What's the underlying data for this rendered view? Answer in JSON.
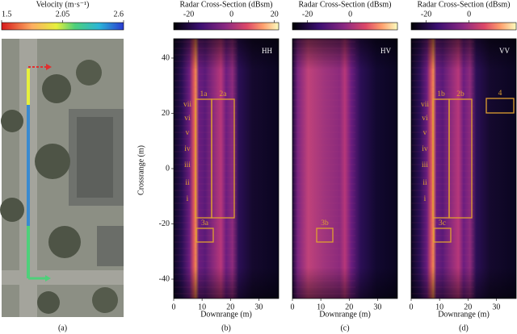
{
  "panel_a": {
    "colorbar_title": "Velocity (m·s⁻¹)",
    "colorbar_lim": [
      1.5,
      2.6
    ],
    "colorbar_ticks": [
      1.5,
      2.05,
      2.6
    ],
    "caption": "(a)"
  },
  "panels": [
    {
      "colorbar_title": "Radar Cross-Section (dBsm)",
      "colorbar_lim": [
        -27,
        22
      ],
      "colorbar_ticks": [
        -20,
        0,
        20
      ],
      "polarization": "HH",
      "xlabel": "Downrange (m)",
      "ylabel": "Crossrange (m)",
      "xlim": [
        0,
        37
      ],
      "ylim": [
        -47,
        47
      ],
      "xticks": [
        0,
        10,
        20,
        30
      ],
      "yticks": [
        -40,
        -20,
        0,
        20,
        40
      ],
      "annotations": [
        "1a",
        "2a",
        "3a"
      ],
      "numerals": [
        "vii",
        "vi",
        "v",
        "iv",
        "iii",
        "ii",
        "i"
      ],
      "caption": "(b)"
    },
    {
      "colorbar_title": "Radar Cross-Section (dBsm)",
      "colorbar_lim": [
        -27,
        22
      ],
      "colorbar_ticks": [
        -20,
        0
      ],
      "polarization": "HV",
      "xlabel": "Downrange (m)",
      "xlim": [
        0,
        37
      ],
      "ylim": [
        -47,
        47
      ],
      "xticks": [
        0,
        10,
        20,
        30
      ],
      "annotations": [
        "3b"
      ],
      "caption": "(c)"
    },
    {
      "colorbar_title": "Radar Cross-Section (dBsm)",
      "colorbar_lim": [
        -27,
        22
      ],
      "colorbar_ticks": [
        -20,
        0
      ],
      "polarization": "VV",
      "xlabel": "Downrange (m)",
      "xlim": [
        0,
        37
      ],
      "ylim": [
        -47,
        47
      ],
      "xticks": [
        0,
        10,
        20,
        30
      ],
      "annotations": [
        "1b",
        "2b",
        "3c",
        "4"
      ],
      "numerals": [
        "vii",
        "vi",
        "v",
        "iv",
        "iii",
        "ii",
        "i"
      ],
      "caption": "(d)"
    }
  ]
}
